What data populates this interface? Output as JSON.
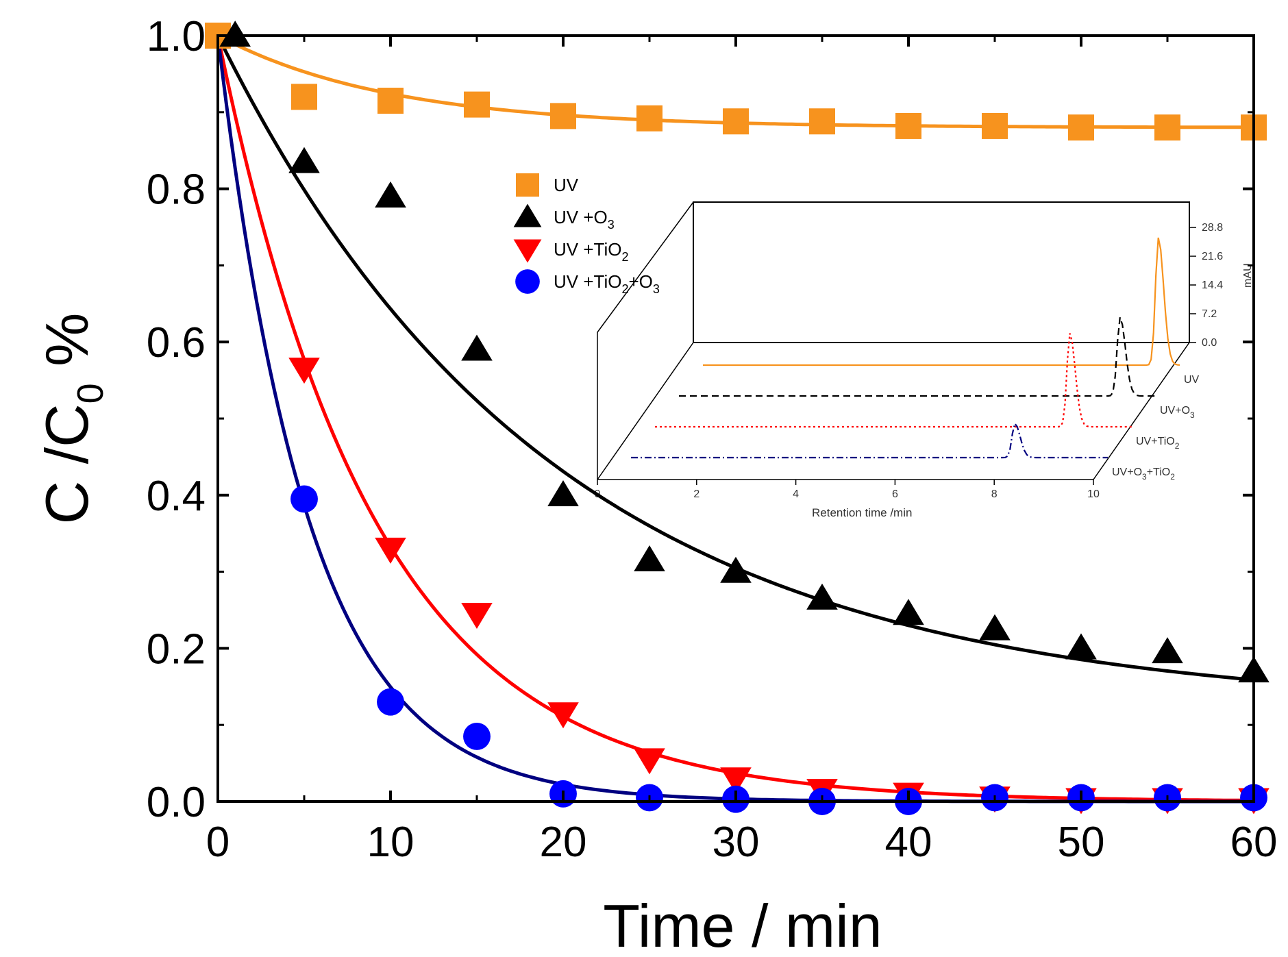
{
  "chart_data": {
    "type": "scatter",
    "xlabel": "Time / min",
    "ylabel": {
      "base": "C /C",
      "sub": "0",
      "suffix": " %"
    },
    "xlim": [
      0,
      60
    ],
    "ylim": [
      0.0,
      1.0
    ],
    "xticks": [
      "0",
      "10",
      "20",
      "30",
      "40",
      "50",
      "60"
    ],
    "yticks": [
      "0.0",
      "0.2",
      "0.4",
      "0.6",
      "0.8",
      "1.0"
    ],
    "legend_position": "upper-center",
    "series": [
      {
        "name": {
          "base": "UV",
          "parts": []
        },
        "marker": "square",
        "color": "#F7931E",
        "x": [
          0,
          5,
          10,
          15,
          20,
          25,
          30,
          35,
          40,
          45,
          50,
          55,
          60
        ],
        "y": [
          1.0,
          0.92,
          0.915,
          0.91,
          0.895,
          0.892,
          0.888,
          0.888,
          0.882,
          0.882,
          0.88,
          0.88,
          0.88
        ],
        "fit": {
          "c0": 1.0,
          "k": 0.1,
          "plateau": 0.88
        }
      },
      {
        "name": {
          "base": "UV +O",
          "parts": [
            {
              "sub": "3"
            }
          ]
        },
        "marker": "triangle-up",
        "color": "#000000",
        "x": [
          1,
          5,
          10,
          15,
          20,
          25,
          30,
          35,
          40,
          45,
          50,
          55,
          60
        ],
        "y": [
          1.0,
          0.835,
          0.79,
          0.59,
          0.4,
          0.315,
          0.3,
          0.265,
          0.245,
          0.225,
          0.2,
          0.195,
          0.17
        ],
        "fit": {
          "c0": 1.0,
          "k": 0.052,
          "plateau": 0.12
        }
      },
      {
        "name": {
          "base": "UV +TiO",
          "parts": [
            {
              "sub": "2"
            }
          ]
        },
        "marker": "triangle-down",
        "color": "#FF0000",
        "x": [
          5,
          10,
          15,
          20,
          25,
          30,
          35,
          40,
          45,
          50,
          55,
          60
        ],
        "y": [
          0.565,
          0.33,
          0.245,
          0.115,
          0.055,
          0.03,
          0.015,
          0.01,
          0.005,
          0.003,
          0.003,
          0.003
        ],
        "fit": {
          "c0": 1.0,
          "k": 0.11,
          "plateau": 0.0
        }
      },
      {
        "name": {
          "base": "UV +TiO",
          "parts": [
            {
              "sub": "2"
            },
            {
              "text": "+O"
            },
            {
              "sub": "3"
            }
          ]
        },
        "marker": "circle",
        "color": "#0000FF",
        "line_color": "#000080",
        "x": [
          5,
          10,
          15,
          20,
          25,
          30,
          35,
          40,
          45,
          50,
          55,
          60
        ],
        "y": [
          0.395,
          0.13,
          0.085,
          0.01,
          0.005,
          0.003,
          0.0,
          0.0,
          0.005,
          0.005,
          0.005,
          0.005
        ],
        "fit": {
          "c0": 1.0,
          "k": 0.19,
          "plateau": 0.0
        }
      }
    ],
    "inset": {
      "type": "line",
      "xlabel": "Retention time /min",
      "xlim": [
        0,
        10
      ],
      "xticks": [
        "0",
        "2",
        "4",
        "6",
        "8",
        "10"
      ],
      "zlabel": "mAU",
      "zticks": [
        "0.0",
        "7.2",
        "14.4",
        "21.6",
        "28.8"
      ],
      "series": [
        {
          "name": "UV",
          "color": "#F7931E",
          "dash": "",
          "peak_time": 9.55,
          "peak_height": 30.0
        },
        {
          "name": "UV+O3",
          "color": "#000000",
          "dash": "10,6",
          "peak_time": 9.25,
          "peak_height": 18.5
        },
        {
          "name": "UV+TiO2",
          "color": "#FF0000",
          "dash": "3,4",
          "peak_time": 8.7,
          "peak_height": 22.0
        },
        {
          "name": "UV+O3+TiO2",
          "color": "#000080",
          "dash": "10,4,2,4",
          "peak_time": 8.05,
          "peak_height": 8.0
        }
      ],
      "labels": [
        {
          "base": "UV",
          "parts": []
        },
        {
          "base": "UV+O",
          "parts": [
            {
              "sub": "3"
            }
          ]
        },
        {
          "base": "UV+TiO",
          "parts": [
            {
              "sub": "2"
            }
          ]
        },
        {
          "base": "UV+O",
          "parts": [
            {
              "sub": "3"
            },
            {
              "text": "+TiO"
            },
            {
              "sub": "2"
            }
          ]
        }
      ]
    }
  }
}
